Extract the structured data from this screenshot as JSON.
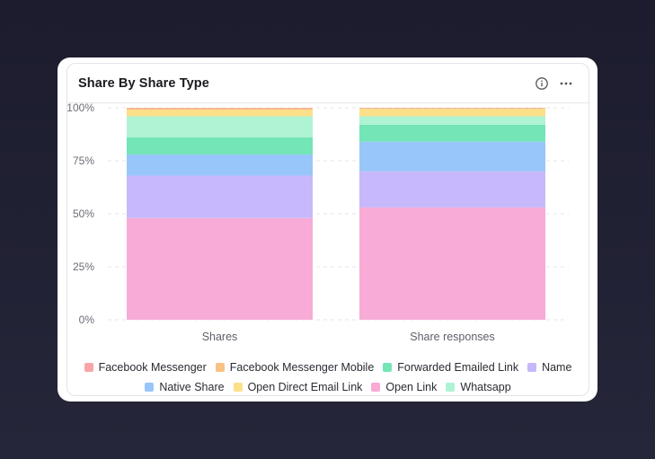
{
  "widget": {
    "title": "Share By Share Type",
    "info_icon": "info-circle-icon",
    "more_icon": "more-horizontal-icon"
  },
  "chart_data": {
    "type": "bar",
    "stacked": true,
    "normalized": true,
    "categories": [
      "Shares",
      "Share responses"
    ],
    "y_ticks": [
      "0%",
      "25%",
      "50%",
      "75%",
      "100%"
    ],
    "ylim": [
      0,
      100
    ],
    "grid": true,
    "legend_position": "bottom",
    "series": [
      {
        "name": "Open Link",
        "color": "#f7abd6",
        "values": [
          48,
          53
        ]
      },
      {
        "name": "Name",
        "color": "#c7b8fb",
        "values": [
          20,
          17
        ]
      },
      {
        "name": "Native Share",
        "color": "#98c6fa",
        "values": [
          10,
          14
        ]
      },
      {
        "name": "Forwarded Emailed Link",
        "color": "#73e5b7",
        "values": [
          8,
          8
        ]
      },
      {
        "name": "Whatsapp",
        "color": "#aef3d3",
        "values": [
          10,
          4
        ]
      },
      {
        "name": "Open Direct Email Link",
        "color": "#fce089",
        "values": [
          3,
          3.5
        ]
      },
      {
        "name": "Facebook Messenger Mobile",
        "color": "#f9c184",
        "values": [
          0.8,
          0.3
        ]
      },
      {
        "name": "Facebook Messenger",
        "color": "#f8a5a9",
        "values": [
          0.2,
          0.2
        ]
      }
    ],
    "legend": [
      [
        "Facebook Messenger",
        "Facebook Messenger Mobile",
        "Forwarded Emailed Link",
        "Name"
      ],
      [
        "Native Share",
        "Open Direct Email Link",
        "Open Link",
        "Whatsapp"
      ]
    ]
  }
}
